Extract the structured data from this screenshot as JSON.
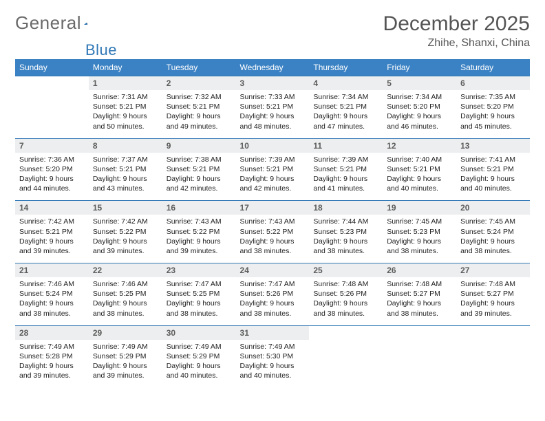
{
  "logo": {
    "text1": "General",
    "text2": "Blue"
  },
  "title": "December 2025",
  "location": "Zhihe, Shanxi, China",
  "colors": {
    "header_bg": "#3b82c4",
    "header_text": "#ffffff",
    "daynum_bg": "#edeeef",
    "daynum_text": "#5c5c5c",
    "row_border": "#2f77b5",
    "body_text": "#222222",
    "logo_gray": "#6a6a6a",
    "logo_blue": "#2f77b5"
  },
  "day_headers": [
    "Sunday",
    "Monday",
    "Tuesday",
    "Wednesday",
    "Thursday",
    "Friday",
    "Saturday"
  ],
  "weeks": [
    {
      "nums": [
        "",
        "1",
        "2",
        "3",
        "4",
        "5",
        "6"
      ],
      "cells": [
        null,
        {
          "sr": "7:31 AM",
          "ss": "5:21 PM",
          "dl": "9 hours and 50 minutes."
        },
        {
          "sr": "7:32 AM",
          "ss": "5:21 PM",
          "dl": "9 hours and 49 minutes."
        },
        {
          "sr": "7:33 AM",
          "ss": "5:21 PM",
          "dl": "9 hours and 48 minutes."
        },
        {
          "sr": "7:34 AM",
          "ss": "5:21 PM",
          "dl": "9 hours and 47 minutes."
        },
        {
          "sr": "7:34 AM",
          "ss": "5:20 PM",
          "dl": "9 hours and 46 minutes."
        },
        {
          "sr": "7:35 AM",
          "ss": "5:20 PM",
          "dl": "9 hours and 45 minutes."
        }
      ]
    },
    {
      "nums": [
        "7",
        "8",
        "9",
        "10",
        "11",
        "12",
        "13"
      ],
      "cells": [
        {
          "sr": "7:36 AM",
          "ss": "5:20 PM",
          "dl": "9 hours and 44 minutes."
        },
        {
          "sr": "7:37 AM",
          "ss": "5:21 PM",
          "dl": "9 hours and 43 minutes."
        },
        {
          "sr": "7:38 AM",
          "ss": "5:21 PM",
          "dl": "9 hours and 42 minutes."
        },
        {
          "sr": "7:39 AM",
          "ss": "5:21 PM",
          "dl": "9 hours and 42 minutes."
        },
        {
          "sr": "7:39 AM",
          "ss": "5:21 PM",
          "dl": "9 hours and 41 minutes."
        },
        {
          "sr": "7:40 AM",
          "ss": "5:21 PM",
          "dl": "9 hours and 40 minutes."
        },
        {
          "sr": "7:41 AM",
          "ss": "5:21 PM",
          "dl": "9 hours and 40 minutes."
        }
      ]
    },
    {
      "nums": [
        "14",
        "15",
        "16",
        "17",
        "18",
        "19",
        "20"
      ],
      "cells": [
        {
          "sr": "7:42 AM",
          "ss": "5:21 PM",
          "dl": "9 hours and 39 minutes."
        },
        {
          "sr": "7:42 AM",
          "ss": "5:22 PM",
          "dl": "9 hours and 39 minutes."
        },
        {
          "sr": "7:43 AM",
          "ss": "5:22 PM",
          "dl": "9 hours and 39 minutes."
        },
        {
          "sr": "7:43 AM",
          "ss": "5:22 PM",
          "dl": "9 hours and 38 minutes."
        },
        {
          "sr": "7:44 AM",
          "ss": "5:23 PM",
          "dl": "9 hours and 38 minutes."
        },
        {
          "sr": "7:45 AM",
          "ss": "5:23 PM",
          "dl": "9 hours and 38 minutes."
        },
        {
          "sr": "7:45 AM",
          "ss": "5:24 PM",
          "dl": "9 hours and 38 minutes."
        }
      ]
    },
    {
      "nums": [
        "21",
        "22",
        "23",
        "24",
        "25",
        "26",
        "27"
      ],
      "cells": [
        {
          "sr": "7:46 AM",
          "ss": "5:24 PM",
          "dl": "9 hours and 38 minutes."
        },
        {
          "sr": "7:46 AM",
          "ss": "5:25 PM",
          "dl": "9 hours and 38 minutes."
        },
        {
          "sr": "7:47 AM",
          "ss": "5:25 PM",
          "dl": "9 hours and 38 minutes."
        },
        {
          "sr": "7:47 AM",
          "ss": "5:26 PM",
          "dl": "9 hours and 38 minutes."
        },
        {
          "sr": "7:48 AM",
          "ss": "5:26 PM",
          "dl": "9 hours and 38 minutes."
        },
        {
          "sr": "7:48 AM",
          "ss": "5:27 PM",
          "dl": "9 hours and 38 minutes."
        },
        {
          "sr": "7:48 AM",
          "ss": "5:27 PM",
          "dl": "9 hours and 39 minutes."
        }
      ]
    },
    {
      "nums": [
        "28",
        "29",
        "30",
        "31",
        "",
        "",
        ""
      ],
      "cells": [
        {
          "sr": "7:49 AM",
          "ss": "5:28 PM",
          "dl": "9 hours and 39 minutes."
        },
        {
          "sr": "7:49 AM",
          "ss": "5:29 PM",
          "dl": "9 hours and 39 minutes."
        },
        {
          "sr": "7:49 AM",
          "ss": "5:29 PM",
          "dl": "9 hours and 40 minutes."
        },
        {
          "sr": "7:49 AM",
          "ss": "5:30 PM",
          "dl": "9 hours and 40 minutes."
        },
        null,
        null,
        null
      ]
    }
  ],
  "labels": {
    "sunrise": "Sunrise: ",
    "sunset": "Sunset: ",
    "daylight": "Daylight: "
  }
}
